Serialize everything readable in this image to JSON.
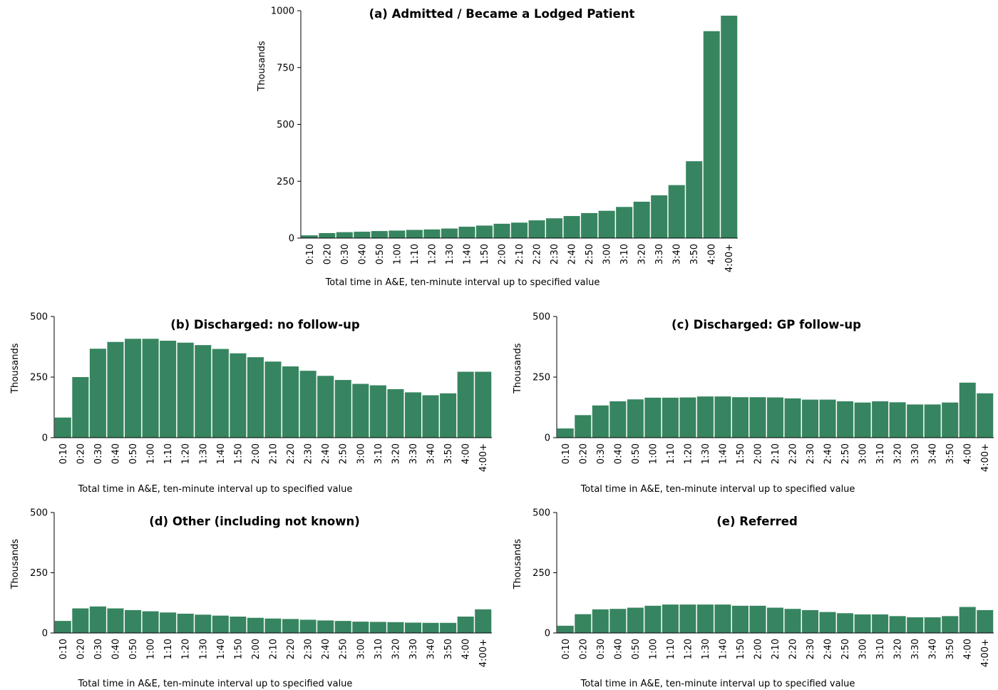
{
  "chart_data": [
    {
      "type": "bar",
      "title": "(a) Admitted / Became a Lodged Patient",
      "ylabel": "Thousands",
      "xlabel": "Total time in A&E, ten-minute interval up to specified value",
      "ylim": [
        0,
        1000
      ],
      "yticks": [
        0,
        250,
        500,
        750,
        1000
      ],
      "categories": [
        "0:10",
        "0:20",
        "0:30",
        "0:40",
        "0:50",
        "1:00",
        "1:10",
        "1:20",
        "1:30",
        "1:40",
        "1:50",
        "2:00",
        "2:10",
        "2:20",
        "2:30",
        "2:40",
        "2:50",
        "3:00",
        "3:10",
        "3:20",
        "3:30",
        "3:40",
        "3:50",
        "4:00",
        "4:00+"
      ],
      "values": [
        12,
        22,
        26,
        28,
        31,
        33,
        36,
        38,
        42,
        50,
        55,
        63,
        68,
        78,
        87,
        97,
        110,
        120,
        137,
        160,
        188,
        233,
        338,
        910,
        978
      ],
      "color": "#368560"
    },
    {
      "type": "bar",
      "title": "(b) Discharged: no follow-up",
      "ylabel": "Thousands",
      "xlabel": "Total time in A&E, ten-minute interval up to specified value",
      "ylim": [
        0,
        500
      ],
      "yticks": [
        0,
        250,
        500
      ],
      "categories": [
        "0:10",
        "0:20",
        "0:30",
        "0:40",
        "0:50",
        "1:00",
        "1:10",
        "1:20",
        "1:30",
        "1:40",
        "1:50",
        "2:00",
        "2:10",
        "2:20",
        "2:30",
        "2:40",
        "2:50",
        "3:00",
        "3:10",
        "3:20",
        "3:30",
        "3:40",
        "3:50",
        "4:00",
        "4:00+"
      ],
      "values": [
        83,
        250,
        367,
        395,
        408,
        408,
        400,
        392,
        382,
        366,
        348,
        332,
        314,
        294,
        276,
        255,
        238,
        222,
        216,
        200,
        187,
        175,
        183,
        272,
        272
      ],
      "color": "#368560"
    },
    {
      "type": "bar",
      "title": "(c) Discharged: GP follow-up",
      "ylabel": "Thousands",
      "xlabel": "Total time in A&E, ten-minute interval up to specified value",
      "ylim": [
        0,
        500
      ],
      "yticks": [
        0,
        250,
        500
      ],
      "categories": [
        "0:10",
        "0:20",
        "0:30",
        "0:40",
        "0:50",
        "1:00",
        "1:10",
        "1:20",
        "1:30",
        "1:40",
        "1:50",
        "2:00",
        "2:10",
        "2:20",
        "2:30",
        "2:40",
        "2:50",
        "3:00",
        "3:10",
        "3:20",
        "3:30",
        "3:40",
        "3:50",
        "4:00",
        "4:00+"
      ],
      "values": [
        38,
        93,
        133,
        150,
        158,
        165,
        165,
        166,
        170,
        170,
        167,
        167,
        166,
        162,
        157,
        157,
        150,
        145,
        150,
        146,
        137,
        137,
        145,
        227,
        183
      ],
      "color": "#368560"
    },
    {
      "type": "bar",
      "title": "(d) Other (including not known)",
      "ylabel": "Thousands",
      "xlabel": "Total time in A&E, ten-minute interval up to specified value",
      "ylim": [
        0,
        500
      ],
      "yticks": [
        0,
        250,
        500
      ],
      "categories": [
        "0:10",
        "0:20",
        "0:30",
        "0:40",
        "0:50",
        "1:00",
        "1:10",
        "1:20",
        "1:30",
        "1:40",
        "1:50",
        "2:00",
        "2:10",
        "2:20",
        "2:30",
        "2:40",
        "2:50",
        "3:00",
        "3:10",
        "3:20",
        "3:30",
        "3:40",
        "3:50",
        "4:00",
        "4:00+"
      ],
      "values": [
        50,
        102,
        110,
        102,
        95,
        90,
        85,
        80,
        76,
        72,
        68,
        63,
        60,
        58,
        55,
        52,
        50,
        47,
        46,
        45,
        43,
        42,
        42,
        68,
        98
      ],
      "color": "#368560"
    },
    {
      "type": "bar",
      "title": "(e) Referred",
      "ylabel": "Thousands",
      "xlabel": "Total time in A&E, ten-minute interval up to specified value",
      "ylim": [
        0,
        500
      ],
      "yticks": [
        0,
        250,
        500
      ],
      "categories": [
        "0:10",
        "0:20",
        "0:30",
        "0:40",
        "0:50",
        "1:00",
        "1:10",
        "1:20",
        "1:30",
        "1:40",
        "1:50",
        "2:00",
        "2:10",
        "2:20",
        "2:30",
        "2:40",
        "2:50",
        "3:00",
        "3:10",
        "3:20",
        "3:30",
        "3:40",
        "3:50",
        "4:00",
        "4:00+"
      ],
      "values": [
        30,
        78,
        98,
        100,
        105,
        113,
        118,
        118,
        118,
        118,
        113,
        113,
        105,
        100,
        95,
        87,
        82,
        77,
        77,
        70,
        65,
        65,
        70,
        108,
        95
      ],
      "color": "#368560"
    }
  ]
}
